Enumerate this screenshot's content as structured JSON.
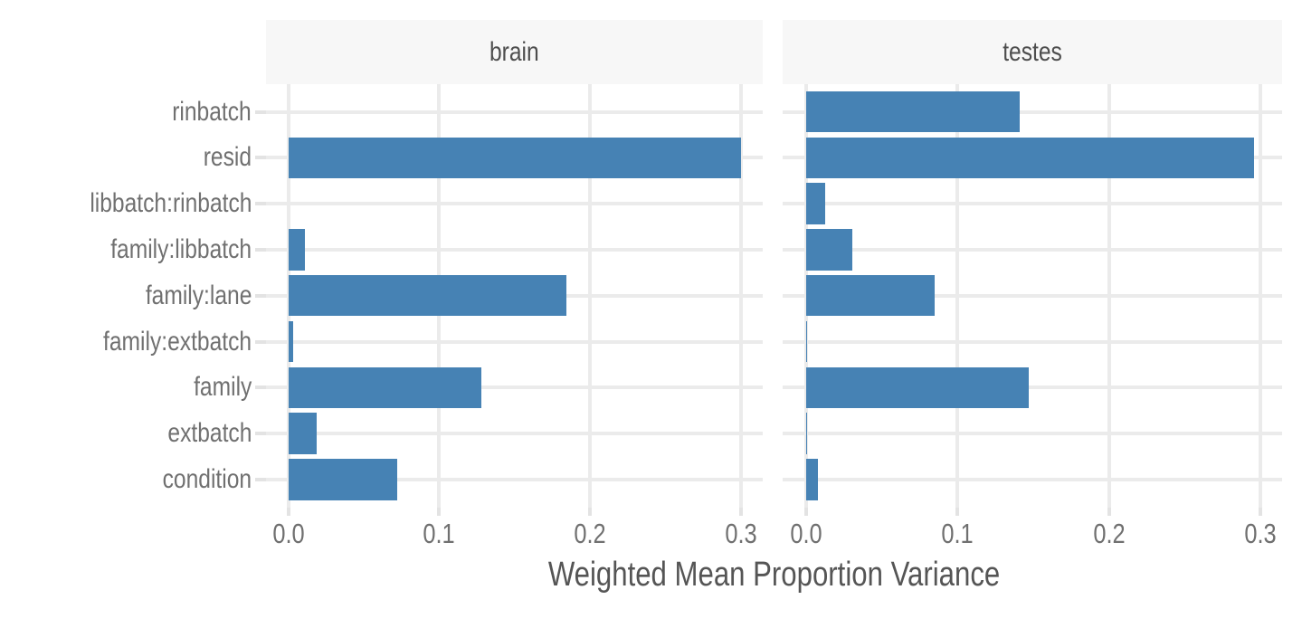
{
  "chart_data": {
    "type": "bar",
    "orientation": "horizontal",
    "xlabel": "Weighted Mean Proportion Variance",
    "categories": [
      "rinbatch",
      "resid",
      "libbatch:rinbatch",
      "family:libbatch",
      "family:lane",
      "family:extbatch",
      "family",
      "extbatch",
      "condition"
    ],
    "facets": [
      {
        "label": "brain",
        "values": [
          0.0,
          0.3,
          0.0,
          0.011,
          0.184,
          0.003,
          0.128,
          0.019,
          0.072
        ]
      },
      {
        "label": "testes",
        "values": [
          0.141,
          0.296,
          0.013,
          0.031,
          0.085,
          0.001,
          0.147,
          0.001,
          0.008
        ]
      }
    ],
    "x_ticks": [
      0.0,
      0.1,
      0.2,
      0.3
    ],
    "x_tick_labels": [
      "0.0",
      "0.1",
      "0.2",
      "0.3"
    ],
    "xlim": [
      0,
      0.3
    ],
    "legend": "none",
    "grid": "major",
    "colors": {
      "bar": "#4682B4",
      "gridline": "#EBEBEB",
      "strip_bg": "#F7F7F7",
      "strip_text": "#4D4D4D",
      "axis_text": "#707070",
      "axis_title": "#555555",
      "tick_mark": "#E3E3E3"
    }
  }
}
